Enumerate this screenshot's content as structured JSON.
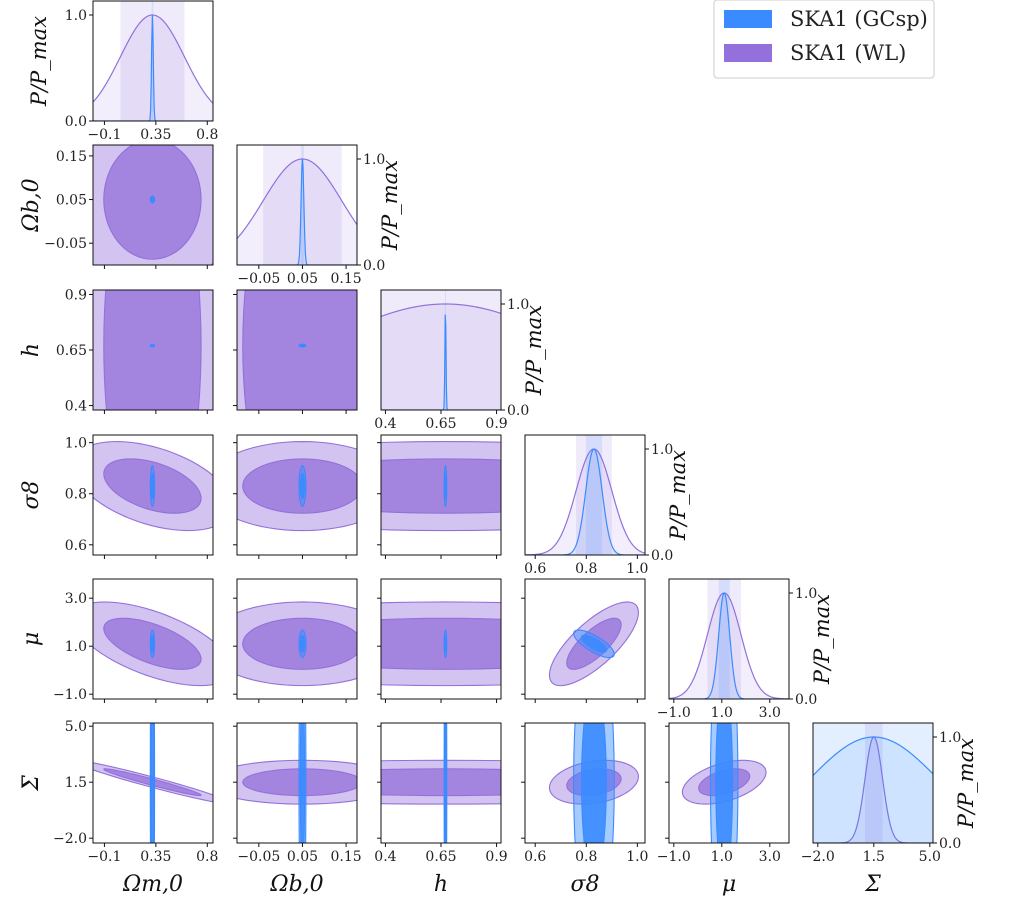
{
  "chart_data": {
    "type": "triangle-corner-plot",
    "posterior_label": "P/P_max",
    "legend": [
      {
        "label": "SKA1 (GCsp)",
        "color": "#3a8bff"
      },
      {
        "label": "SKA1 (WL)",
        "color": "#9370db"
      }
    ],
    "params": [
      {
        "symbol": "Ωm,0",
        "ticks": [
          -0.1,
          0.35,
          0.8
        ],
        "tick_labels": [
          "−0.1",
          "0.35",
          "0.8"
        ]
      },
      {
        "symbol": "Ωb,0",
        "ticks": [
          -0.05,
          0.05,
          0.15
        ],
        "tick_labels": [
          "−0.05",
          "0.05",
          "0.15"
        ]
      },
      {
        "symbol": "h",
        "ticks": [
          0.4,
          0.65,
          0.9
        ],
        "tick_labels": [
          "0.4",
          "0.65",
          "0.9"
        ]
      },
      {
        "symbol": "σ8",
        "ticks": [
          0.6,
          0.8,
          1.0
        ],
        "tick_labels": [
          "0.6",
          "0.8",
          "1.0"
        ]
      },
      {
        "symbol": "μ",
        "ticks": [
          -1.0,
          1.0,
          3.0
        ],
        "tick_labels": [
          "−1.0",
          "1.0",
          "3.0"
        ]
      },
      {
        "symbol": "Σ",
        "ticks": [
          -2.0,
          1.5,
          5.0
        ],
        "tick_labels": [
          "−2.0",
          "1.5",
          "5.0"
        ]
      }
    ],
    "diag_ticks": [
      0.0,
      1.0
    ],
    "diag_tick_labels": [
      "0.0",
      "1.0"
    ]
  }
}
